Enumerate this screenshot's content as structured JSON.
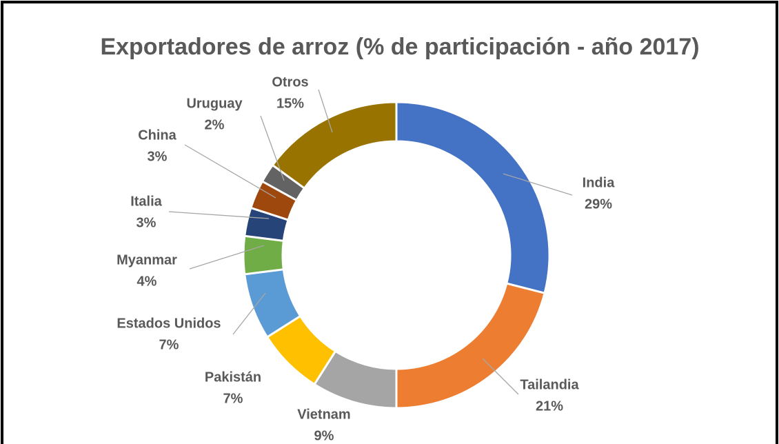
{
  "chart_data": {
    "type": "donut",
    "title": "Exportadores de arroz (% de participación - año 2017)",
    "categories": [
      "India",
      "Tailandia",
      "Vietnam",
      "Pakistán",
      "Estados Unidos",
      "Myanmar",
      "Italia",
      "China",
      "Uruguay",
      "Otros"
    ],
    "values": [
      29,
      21,
      9,
      7,
      7,
      4,
      3,
      3,
      2,
      15
    ],
    "value_labels": [
      "29%",
      "21%",
      "9%",
      "7%",
      "7%",
      "4%",
      "3%",
      "3%",
      "2%",
      "15%"
    ],
    "colors": [
      "#4472c4",
      "#ed7d31",
      "#a5a5a5",
      "#ffc000",
      "#5b9bd5",
      "#70ad47",
      "#264478",
      "#9e480e",
      "#636363",
      "#997300"
    ]
  }
}
